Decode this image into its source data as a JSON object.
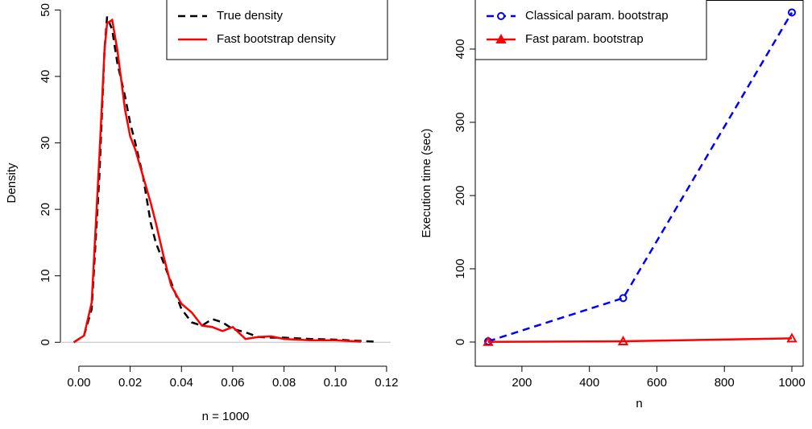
{
  "chart_data": [
    {
      "type": "line",
      "xlabel": "n = 1000",
      "ylabel": "Density",
      "x": [
        -0.002,
        0.002,
        0.005,
        0.008,
        0.01,
        0.011,
        0.013,
        0.015,
        0.018,
        0.02,
        0.022,
        0.025,
        0.028,
        0.03,
        0.033,
        0.036,
        0.04,
        0.044,
        0.048,
        0.052,
        0.056,
        0.06,
        0.065,
        0.07,
        0.075,
        0.08,
        0.09,
        0.1,
        0.11,
        0.115
      ],
      "series": [
        {
          "name": "True density",
          "color": "#000000",
          "dash": true,
          "values": [
            0,
            1,
            5,
            25,
            44,
            49,
            47,
            42,
            37,
            33,
            30,
            25,
            18,
            15,
            12,
            9,
            5,
            3,
            2.5,
            3.5,
            3,
            2,
            1.5,
            0.8,
            0.7,
            0.7,
            0.5,
            0.4,
            0.2,
            0.1
          ]
        },
        {
          "name": "Fast bootstrap density",
          "color": "#ff0000",
          "dash": false,
          "values": [
            0,
            1,
            6,
            28,
            44,
            48,
            48.5,
            44,
            35,
            31,
            29,
            25,
            21,
            18,
            13,
            8.5,
            5.8,
            4.5,
            2.5,
            2.3,
            1.7,
            2.3,
            0.5,
            0.8,
            0.9,
            0.5,
            0.3,
            0.3,
            0.1,
            null
          ]
        }
      ],
      "xlim": [
        -0.0072,
        0.1216
      ],
      "ylim": [
        -3.6,
        51.5
      ],
      "xticks": [
        {
          "value": 0,
          "label": "0.00"
        },
        0.02,
        0.04,
        0.06,
        0.08,
        {
          "value": 0.1,
          "label": "0.10"
        },
        0.12
      ],
      "yticks": [
        0,
        10,
        20,
        30,
        40,
        50
      ],
      "zero_line": true,
      "box": false,
      "legend": "top-right"
    },
    {
      "type": "line",
      "xlabel": "n",
      "ylabel": "Execution time (sec)",
      "x": [
        100,
        500,
        1000
      ],
      "series": [
        {
          "name": "Classical param. bootstrap",
          "color": "#0000ff",
          "dash": true,
          "marker": "circle",
          "values": [
            1,
            60,
            450
          ]
        },
        {
          "name": "Fast param. bootstrap",
          "color": "#ff0000",
          "dash": false,
          "marker": "triangle",
          "values": [
            0.3,
            1,
            5
          ]
        }
      ],
      "xlim": [
        61.8,
        1033.4
      ],
      "ylim": [
        -33,
        467
      ],
      "xticks": [
        200,
        400,
        600,
        800,
        1000
      ],
      "yticks": [
        0,
        100,
        200,
        300,
        400
      ],
      "zero_line": false,
      "box": true,
      "legend": "top-left"
    }
  ]
}
